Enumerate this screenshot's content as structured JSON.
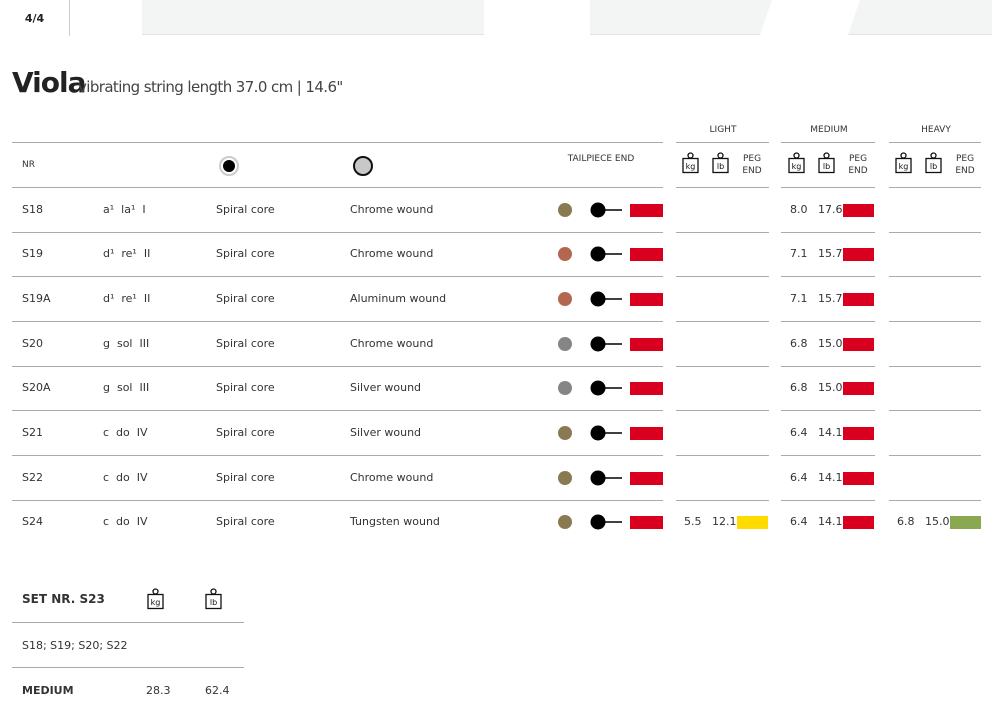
{
  "tabs": [
    {
      "label": "4/4",
      "active": true
    }
  ],
  "header": {
    "title": "Viola",
    "subtitle": "vibrating string length 37.0 cm | 14.6\""
  },
  "table": {
    "columns": {
      "nr": "NR",
      "tailpiece": "TAILPIECE END",
      "groups": [
        "LIGHT",
        "MEDIUM",
        "HEAVY"
      ],
      "kg": "kg",
      "lb": "lb",
      "peg_end": "PEG END"
    },
    "core_icon": "solid-core-icon",
    "wound_icon": "wound-icon",
    "colors": {
      "gold": "#8a7a52",
      "copper": "#b3674e",
      "grey": "#858585",
      "red": "#d9001f",
      "yellow": "#ffdb00",
      "green": "#8aa84f"
    },
    "rows": [
      {
        "nr": "S18",
        "note": "a¹  la¹  I",
        "core": "Spiral core",
        "wound": "Chrome wound",
        "color": "#8a7a52",
        "light": null,
        "medium": {
          "kg": "8.0",
          "lb": "17.6",
          "peg": "#d9001f"
        },
        "heavy": null
      },
      {
        "nr": "S19",
        "note": "d¹  re¹  II",
        "core": "Spiral core",
        "wound": "Chrome wound",
        "color": "#b3674e",
        "light": null,
        "medium": {
          "kg": "7.1",
          "lb": "15.7",
          "peg": "#d9001f"
        },
        "heavy": null
      },
      {
        "nr": "S19A",
        "note": "d¹  re¹  II",
        "core": "Spiral core",
        "wound": "Aluminum wound",
        "color": "#b3674e",
        "light": null,
        "medium": {
          "kg": "7.1",
          "lb": "15.7",
          "peg": "#d9001f"
        },
        "heavy": null
      },
      {
        "nr": "S20",
        "note": "g  sol  III",
        "core": "Spiral core",
        "wound": "Chrome wound",
        "color": "#858585",
        "light": null,
        "medium": {
          "kg": "6.8",
          "lb": "15.0",
          "peg": "#d9001f"
        },
        "heavy": null
      },
      {
        "nr": "S20A",
        "note": "g  sol  III",
        "core": "Spiral core",
        "wound": "Silver wound",
        "color": "#858585",
        "light": null,
        "medium": {
          "kg": "6.8",
          "lb": "15.0",
          "peg": "#d9001f"
        },
        "heavy": null
      },
      {
        "nr": "S21",
        "note": "c  do  IV",
        "core": "Spiral core",
        "wound": "Silver wound",
        "color": "#8a7a52",
        "light": null,
        "medium": {
          "kg": "6.4",
          "lb": "14.1",
          "peg": "#d9001f"
        },
        "heavy": null
      },
      {
        "nr": "S22",
        "note": "c  do  IV",
        "core": "Spiral core",
        "wound": "Chrome wound",
        "color": "#8a7a52",
        "light": null,
        "medium": {
          "kg": "6.4",
          "lb": "14.1",
          "peg": "#d9001f"
        },
        "heavy": null
      },
      {
        "nr": "S24",
        "note": "c  do  IV",
        "core": "Spiral core",
        "wound": "Tungsten wound",
        "color": "#8a7a52",
        "light": {
          "kg": "5.5",
          "lb": "12.1",
          "peg": "#ffdb00"
        },
        "medium": {
          "kg": "6.4",
          "lb": "14.1",
          "peg": "#d9001f"
        },
        "heavy": {
          "kg": "6.8",
          "lb": "15.0",
          "peg": "#8aa84f"
        }
      }
    ]
  },
  "set": {
    "title": "SET NR. S23",
    "kg": "kg",
    "lb": "lb",
    "strings": "S18; S19; S20; S22",
    "tension_label": "MEDIUM",
    "kg_value": "28.3",
    "lb_value": "62.4"
  }
}
